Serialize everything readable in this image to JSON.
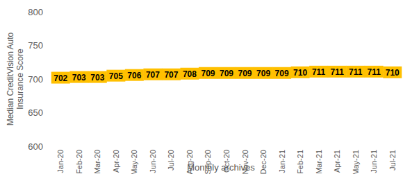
{
  "chart_data": {
    "type": "line",
    "y_label": "Median CreditVision Auto Insurance Score",
    "x_label": "Monthly archives",
    "categories": [
      "Jan-20",
      "Feb-20",
      "Mar-20",
      "Apr-20",
      "May-20",
      "Jun-20",
      "Jul-20",
      "Aug-20",
      "Sep-20",
      "Oct-20",
      "Nov-20",
      "Dec-20",
      "Jan-21",
      "Feb-21",
      "Mar-21",
      "Apr-21",
      "May-21",
      "Jun-21",
      "Jul-21"
    ],
    "series": [
      {
        "name": "Median CreditVision Auto Insurance Score",
        "color": "#5b9bd5",
        "values": [
          702,
          703,
          703,
          705,
          706,
          707,
          707,
          708,
          709,
          709,
          709,
          709,
          709,
          710,
          711,
          711,
          711,
          711,
          710
        ]
      }
    ],
    "ylim": [
      600,
      800
    ],
    "yticks": [
      600,
      650,
      700,
      750,
      800
    ],
    "grid": false,
    "data_labels": true
  }
}
